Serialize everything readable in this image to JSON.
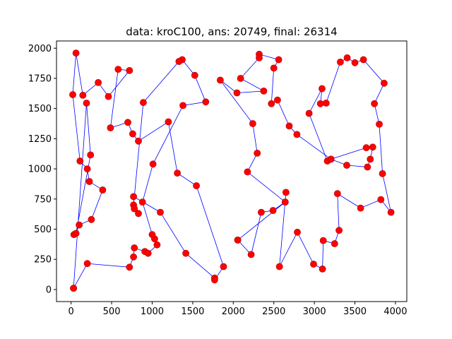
{
  "chart_data": {
    "type": "scatter",
    "title": "data: kroC100, ans: 20749, final: 26314",
    "xlabel": "",
    "ylabel": "",
    "xlim": [
      -180,
      4140
    ],
    "ylim": [
      -100,
      2060
    ],
    "xticks": [
      0,
      500,
      1000,
      1500,
      2000,
      2500,
      3000,
      3500,
      4000
    ],
    "xtick_labels": [
      "0",
      "500",
      "1000",
      "1500",
      "2000",
      "2500",
      "3000",
      "3500",
      "4000"
    ],
    "yticks": [
      0,
      250,
      500,
      750,
      1000,
      1250,
      1500,
      1750,
      2000
    ],
    "ytick_labels": [
      "0",
      "250",
      "500",
      "750",
      "1000",
      "1250",
      "1500",
      "1750",
      "2000"
    ],
    "grid": false,
    "colors": {
      "points": "#ff0000",
      "point_edge": "#b00000",
      "route": "#0000ff"
    },
    "route_closed": true,
    "route": [
      [
        30,
        10
      ],
      [
        200,
        215
      ],
      [
        720,
        185
      ],
      [
        770,
        270
      ],
      [
        780,
        345
      ],
      [
        910,
        315
      ],
      [
        950,
        300
      ],
      [
        1060,
        370
      ],
      [
        1030,
        420
      ],
      [
        1000,
        455
      ],
      [
        880,
        725
      ],
      [
        1010,
        1040
      ],
      [
        1380,
        1525
      ],
      [
        1660,
        1555
      ],
      [
        1525,
        1775
      ],
      [
        1370,
        1905
      ],
      [
        1330,
        1890
      ],
      [
        890,
        1550
      ],
      [
        770,
        700
      ],
      [
        830,
        630
      ],
      [
        780,
        670
      ],
      [
        770,
        770
      ],
      [
        1100,
        640
      ],
      [
        1415,
        300
      ],
      [
        1770,
        95
      ],
      [
        1770,
        80
      ],
      [
        1880,
        190
      ],
      [
        1545,
        860
      ],
      [
        1310,
        965
      ],
      [
        1200,
        1390
      ],
      [
        830,
        1230
      ],
      [
        760,
        1290
      ],
      [
        700,
        1385
      ],
      [
        485,
        1340
      ],
      [
        580,
        1825
      ],
      [
        720,
        1815
      ],
      [
        460,
        1600
      ],
      [
        335,
        1715
      ],
      [
        145,
        1610
      ],
      [
        60,
        1960
      ],
      [
        20,
        1615
      ],
      [
        110,
        1065
      ],
      [
        200,
        1000
      ],
      [
        225,
        895
      ],
      [
        390,
        825
      ],
      [
        250,
        580
      ],
      [
        100,
        535
      ],
      [
        35,
        455
      ],
      [
        60,
        465
      ],
      [
        240,
        1115
      ],
      [
        190,
        1545
      ],
      [
        30,
        10
      ]
    ],
    "route2": [
      [
        2055,
        410
      ],
      [
        2220,
        290
      ],
      [
        2345,
        640
      ],
      [
        2490,
        655
      ],
      [
        2640,
        725
      ],
      [
        2650,
        805
      ],
      [
        2570,
        190
      ],
      [
        2790,
        475
      ],
      [
        2990,
        210
      ],
      [
        3100,
        170
      ],
      [
        3110,
        405
      ],
      [
        3250,
        380
      ],
      [
        3305,
        490
      ],
      [
        3285,
        795
      ],
      [
        3570,
        675
      ],
      [
        3820,
        745
      ],
      [
        3945,
        640
      ],
      [
        3840,
        960
      ],
      [
        3800,
        1370
      ],
      [
        3740,
        1540
      ],
      [
        3860,
        1710
      ],
      [
        3605,
        1905
      ],
      [
        3500,
        1880
      ],
      [
        3405,
        1920
      ],
      [
        3320,
        1885
      ],
      [
        3145,
        1545
      ],
      [
        3075,
        1540
      ],
      [
        3095,
        1665
      ],
      [
        2935,
        1460
      ],
      [
        3160,
        1065
      ],
      [
        3205,
        1080
      ],
      [
        3640,
        1175
      ],
      [
        3720,
        1180
      ],
      [
        3690,
        1080
      ],
      [
        3655,
        1015
      ],
      [
        3400,
        1030
      ],
      [
        3205,
        1080
      ],
      [
        2785,
        1285
      ],
      [
        2690,
        1355
      ],
      [
        2545,
        1570
      ],
      [
        2470,
        1540
      ],
      [
        2500,
        1835
      ],
      [
        2560,
        1905
      ],
      [
        2320,
        1950
      ],
      [
        2320,
        1920
      ],
      [
        2090,
        1750
      ],
      [
        2375,
        1645
      ],
      [
        2045,
        1630
      ],
      [
        1840,
        1735
      ],
      [
        2240,
        1375
      ],
      [
        2295,
        1130
      ],
      [
        2175,
        975
      ],
      [
        2640,
        725
      ],
      [
        2055,
        410
      ]
    ]
  }
}
